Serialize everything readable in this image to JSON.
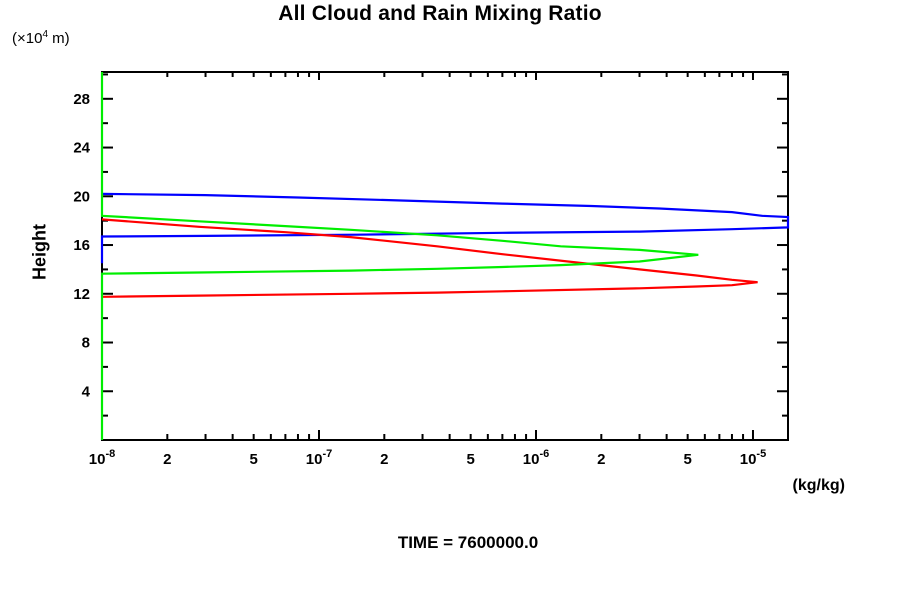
{
  "title": "All Cloud and Rain Mixing Ratio",
  "caption": "TIME = 7600000.0",
  "chart_data": {
    "type": "line",
    "title": "All Cloud and Rain Mixing Ratio",
    "caption": "TIME = 7600000.0",
    "xlabel_unit": "(kg/kg)",
    "ylabel": "Height",
    "y_unit": {
      "prefix": "(×10",
      "sup": "4",
      "suffix": " m)"
    },
    "xscale": "log",
    "xlim": [
      1e-08,
      1.45e-05
    ],
    "ylim": [
      0,
      30.2
    ],
    "x_decades": [
      -8,
      -7,
      -6,
      -5
    ],
    "x_minor_multiples": [
      2,
      3,
      4,
      5,
      6,
      7,
      8,
      9
    ],
    "x_labeled_minors": [
      2,
      5
    ],
    "y_minor_step": 2,
    "y_major_step": 4,
    "y_tick_labels": [
      4,
      8,
      12,
      16,
      20,
      24,
      28
    ],
    "grid": false,
    "legend": "none",
    "axis_color": "#000000",
    "series": [
      {
        "name": "blue-profile",
        "color": "#0000ff",
        "points": [
          [
            1e-08,
            20.2
          ],
          [
            3e-08,
            20.1
          ],
          [
            8e-08,
            19.9
          ],
          [
            2.5e-07,
            19.65
          ],
          [
            7e-07,
            19.4
          ],
          [
            1.8e-06,
            19.2
          ],
          [
            3.7e-06,
            19.0
          ],
          [
            8e-06,
            18.7
          ],
          [
            1.1e-05,
            18.4
          ],
          [
            1.45e-05,
            18.3
          ],
          [
            1.45e-05,
            17.45
          ],
          [
            8e-06,
            17.3
          ],
          [
            3e-06,
            17.1
          ],
          [
            7e-07,
            17.0
          ],
          [
            1.5e-07,
            16.85
          ],
          [
            3e-08,
            16.75
          ],
          [
            1e-08,
            16.7
          ],
          [
            1e-08,
            14.5
          ]
        ]
      },
      {
        "name": "red-profile",
        "color": "#ff0000",
        "points": [
          [
            1e-08,
            18.1
          ],
          [
            2.8e-08,
            17.5
          ],
          [
            7e-08,
            17.05
          ],
          [
            1.4e-07,
            16.65
          ],
          [
            3.5e-07,
            15.9
          ],
          [
            7e-07,
            15.25
          ],
          [
            1.76e-06,
            14.45
          ],
          [
            3e-06,
            14.0
          ],
          [
            5.5e-06,
            13.5
          ],
          [
            8e-06,
            13.15
          ],
          [
            1.05e-05,
            12.95
          ],
          [
            8e-06,
            12.7
          ],
          [
            5.5e-06,
            12.6
          ],
          [
            3e-06,
            12.45
          ],
          [
            7e-07,
            12.2
          ],
          [
            3.5e-07,
            12.1
          ],
          [
            1.4e-07,
            12.0
          ],
          [
            2.8e-08,
            11.85
          ],
          [
            1e-08,
            11.75
          ]
        ]
      },
      {
        "name": "green-profile",
        "color": "#00ee00",
        "points": [
          [
            1e-08,
            30.2
          ],
          [
            1e-08,
            18.4
          ],
          [
            2.8e-08,
            17.95
          ],
          [
            7e-08,
            17.55
          ],
          [
            1.4e-07,
            17.25
          ],
          [
            3.5e-07,
            16.8
          ],
          [
            7e-07,
            16.35
          ],
          [
            1.3e-06,
            15.9
          ],
          [
            3e-06,
            15.6
          ],
          [
            5.6e-06,
            15.2
          ],
          [
            3e-06,
            14.65
          ],
          [
            1.3e-06,
            14.35
          ],
          [
            7e-07,
            14.2
          ],
          [
            3.5e-07,
            14.05
          ],
          [
            1.4e-07,
            13.9
          ],
          [
            2.8e-08,
            13.75
          ],
          [
            1e-08,
            13.65
          ],
          [
            1e-08,
            0.0
          ]
        ]
      }
    ]
  }
}
